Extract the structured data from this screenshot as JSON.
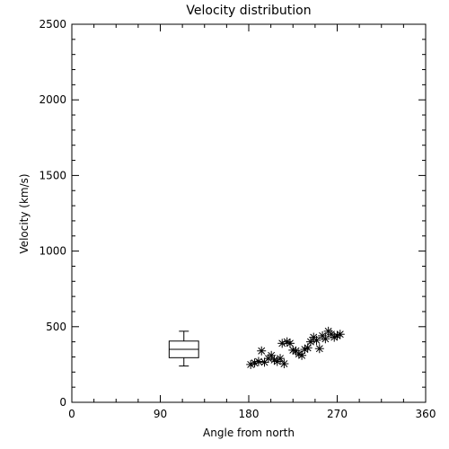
{
  "chart_data": {
    "type": "scatter",
    "title": "Velocity distribution",
    "xlabel": "Angle from north",
    "ylabel": "Velocity (km/s)",
    "xlim": [
      0,
      360
    ],
    "ylim": [
      0,
      2500
    ],
    "x_ticks": [
      0,
      90,
      180,
      270,
      360
    ],
    "y_ticks": [
      0,
      500,
      1000,
      1500,
      2000,
      2500
    ],
    "x_minor_step": 22.5,
    "y_minor_step": 100,
    "grid": false,
    "marker": "asterisk",
    "points": [
      {
        "x": 182,
        "y": 250
      },
      {
        "x": 186,
        "y": 260
      },
      {
        "x": 190,
        "y": 270
      },
      {
        "x": 193,
        "y": 340
      },
      {
        "x": 196,
        "y": 265
      },
      {
        "x": 200,
        "y": 290
      },
      {
        "x": 203,
        "y": 310
      },
      {
        "x": 206,
        "y": 280
      },
      {
        "x": 209,
        "y": 270
      },
      {
        "x": 212,
        "y": 290
      },
      {
        "x": 214,
        "y": 390
      },
      {
        "x": 216,
        "y": 255
      },
      {
        "x": 219,
        "y": 400
      },
      {
        "x": 222,
        "y": 390
      },
      {
        "x": 225,
        "y": 345
      },
      {
        "x": 228,
        "y": 340
      },
      {
        "x": 231,
        "y": 320
      },
      {
        "x": 234,
        "y": 310
      },
      {
        "x": 237,
        "y": 350
      },
      {
        "x": 240,
        "y": 360
      },
      {
        "x": 243,
        "y": 400
      },
      {
        "x": 246,
        "y": 430
      },
      {
        "x": 249,
        "y": 410
      },
      {
        "x": 252,
        "y": 355
      },
      {
        "x": 255,
        "y": 440
      },
      {
        "x": 258,
        "y": 420
      },
      {
        "x": 261,
        "y": 470
      },
      {
        "x": 264,
        "y": 450
      },
      {
        "x": 267,
        "y": 430
      },
      {
        "x": 270,
        "y": 440
      },
      {
        "x": 273,
        "y": 450
      }
    ],
    "boxplot": {
      "x_center": 114,
      "x_halfwidth": 15,
      "whisker_halfwidth": 5,
      "min": 240,
      "q1": 295,
      "median": 350,
      "q3": 405,
      "max": 470
    }
  }
}
